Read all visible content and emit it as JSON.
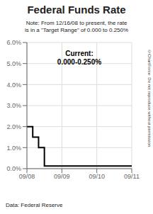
{
  "chart_data": {
    "type": "step",
    "title": "Federal Funds Rate",
    "subtitle": "Note: From 12/16/08 to present, the rate\nis in a \"Target Range\" of 0.000 to 0.250%",
    "annotations": [
      "Current:",
      "0.000-0.250%"
    ],
    "footnote": "Data: Federal Reserve",
    "watermark": "©ChartForce  Do not reproduce without permission.",
    "x": [
      0,
      1,
      2,
      3,
      4,
      5,
      6,
      7,
      8,
      9,
      10,
      11,
      12,
      13,
      14,
      15,
      16,
      17,
      18,
      19,
      20,
      21,
      22,
      23,
      24,
      25,
      26,
      27,
      28,
      29,
      30,
      31,
      32,
      33,
      34,
      35,
      36
    ],
    "values": [
      2.0,
      2.0,
      1.5,
      1.5,
      1.0,
      1.0,
      0.125,
      0.125,
      0.125,
      0.125,
      0.125,
      0.125,
      0.125,
      0.125,
      0.125,
      0.125,
      0.125,
      0.125,
      0.125,
      0.125,
      0.125,
      0.125,
      0.125,
      0.125,
      0.125,
      0.125,
      0.125,
      0.125,
      0.125,
      0.125,
      0.125,
      0.125,
      0.125,
      0.125,
      0.125,
      0.125,
      0.125
    ],
    "color": "#000000",
    "xlim": [
      0,
      36
    ],
    "xticks": [
      {
        "value": 0,
        "label": "09/08"
      },
      {
        "value": 12,
        "label": "09/09"
      },
      {
        "value": 24,
        "label": "09/10"
      },
      {
        "value": 36,
        "label": "09/11"
      }
    ],
    "ylim": [
      0.0,
      6.0
    ],
    "yticks": [
      {
        "value": 0.0,
        "label": "0.0%"
      },
      {
        "value": 1.0,
        "label": "1.0%"
      },
      {
        "value": 2.0,
        "label": "2.0%"
      },
      {
        "value": 3.0,
        "label": "3.0%"
      },
      {
        "value": 4.0,
        "label": "4.0%"
      },
      {
        "value": 5.0,
        "label": "5.0%"
      },
      {
        "value": 6.0,
        "label": "6.0%"
      }
    ],
    "grid": true
  }
}
